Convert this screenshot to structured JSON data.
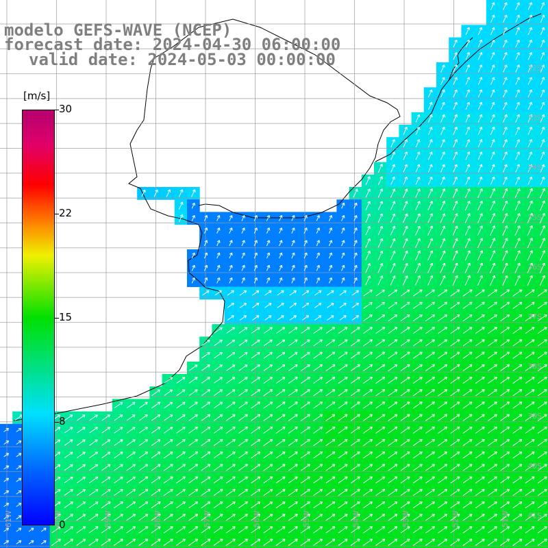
{
  "header": {
    "line1": "modelo GEFS-WAVE (NCEP)",
    "line2": "forecast date: 2024-04-30 06:00:00",
    "line3": "valid date: 2024-05-03 00:00:00"
  },
  "colorbar": {
    "unit": "[m/s]",
    "ticks": [
      "30",
      "22",
      "15",
      "8",
      "0"
    ],
    "colors": [
      "#0000ff",
      "#0064ff",
      "#00e0ff",
      "#00e000",
      "#f0f000",
      "#ff8000",
      "#ff0000",
      "#e0006a",
      "#b4006e"
    ]
  },
  "map": {
    "lat_labels": [
      "32S",
      "33S",
      "34S",
      "35S",
      "36S",
      "37S",
      "38S",
      "39S",
      "40S",
      "41S"
    ],
    "lon_labels": [
      "61W",
      "60W",
      "59W",
      "58W",
      "57W",
      "56W",
      "55W",
      "54W",
      "53W",
      "52W",
      "51W"
    ],
    "grid_color": "#9a9a9a",
    "land_color": "#ffffff",
    "arrow_color": "#ffffff"
  }
}
